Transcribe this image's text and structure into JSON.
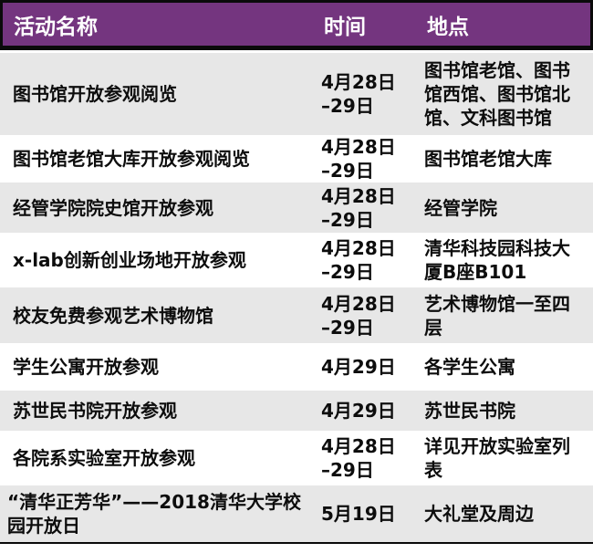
{
  "table": {
    "header": {
      "activity": "活动名称",
      "time": "时间",
      "location": "地点"
    },
    "rows": [
      {
        "activity": "图书馆开放参观阅览",
        "time": "4月28日\n–29日",
        "location": "图书馆老馆、图书馆西馆、图书馆北馆、文科图书馆"
      },
      {
        "activity": "图书馆老馆大库开放参观阅览",
        "time": "4月28日\n–29日",
        "location": "图书馆老馆大库"
      },
      {
        "activity": "经管学院院史馆开放参观",
        "time": "4月28日\n–29日",
        "location": "经管学院"
      },
      {
        "activity": "x-lab创新创业场地开放参观",
        "time": "4月28日\n–29日",
        "location": "清华科技园科技大厦B座B101"
      },
      {
        "activity": "校友免费参观艺术博物馆",
        "time": "4月28日\n–29日",
        "location": "艺术博物馆一至四层"
      },
      {
        "activity": "学生公寓开放参观",
        "time": "4月29日",
        "location": "各学生公寓"
      },
      {
        "activity": "苏世民书院开放参观",
        "time": "4月29日",
        "location": "苏世民书院"
      },
      {
        "activity": "各院系实验室开放参观",
        "time": "4月28日\n–29日",
        "location": "详见开放实验室列表"
      },
      {
        "activity": "“清华正芳华”——2018清华大学校园开放日",
        "time": "5月19日",
        "location": "大礼堂及周边"
      }
    ]
  },
  "colors": {
    "header_bg": "#74357f",
    "header_text": "#ffffff",
    "row_bg": "#ffffff",
    "row_alt_bg": "#e7e7e7",
    "body_text": "#0d0d0d",
    "border": "#0a0a0a"
  }
}
